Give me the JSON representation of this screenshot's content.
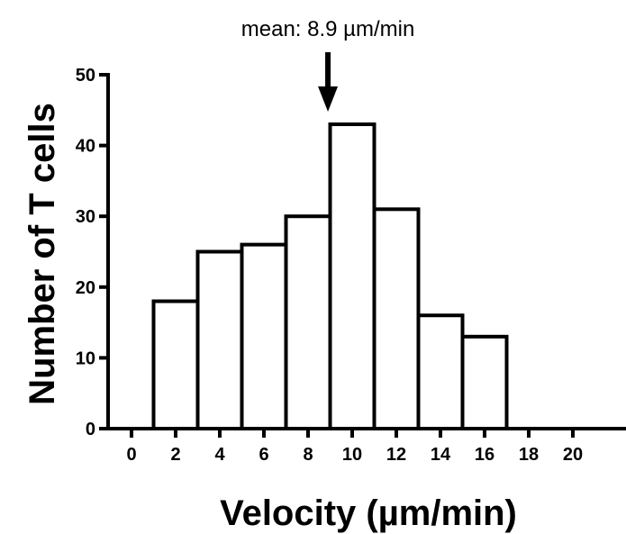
{
  "chart_data": {
    "type": "bar",
    "title": "",
    "xlabel": "Velocity (µm/min)",
    "ylabel": "Number of T cells",
    "bins": [
      {
        "x0": 1,
        "x1": 3,
        "count": 18
      },
      {
        "x0": 3,
        "x1": 5,
        "count": 25
      },
      {
        "x0": 5,
        "x1": 7,
        "count": 26
      },
      {
        "x0": 7,
        "x1": 9,
        "count": 30
      },
      {
        "x0": 9,
        "x1": 11,
        "count": 43
      },
      {
        "x0": 11,
        "x1": 13,
        "count": 31
      },
      {
        "x0": 13,
        "x1": 15,
        "count": 16
      },
      {
        "x0": 15,
        "x1": 17,
        "count": 13
      }
    ],
    "x_ticks": [
      "0",
      "2",
      "4",
      "6",
      "8",
      "10",
      "12",
      "14",
      "16",
      "18",
      "20"
    ],
    "y_ticks": [
      "0",
      "10",
      "20",
      "30",
      "40",
      "50"
    ],
    "xlim": [
      -1,
      23
    ],
    "ylim": [
      0,
      50
    ],
    "grid": false,
    "bar_fill": "#ffffff",
    "bar_stroke": "#000000",
    "annotation": {
      "text": "mean: 8.9 µm/min",
      "x": 8.9,
      "icon": "down-arrow-icon"
    }
  }
}
